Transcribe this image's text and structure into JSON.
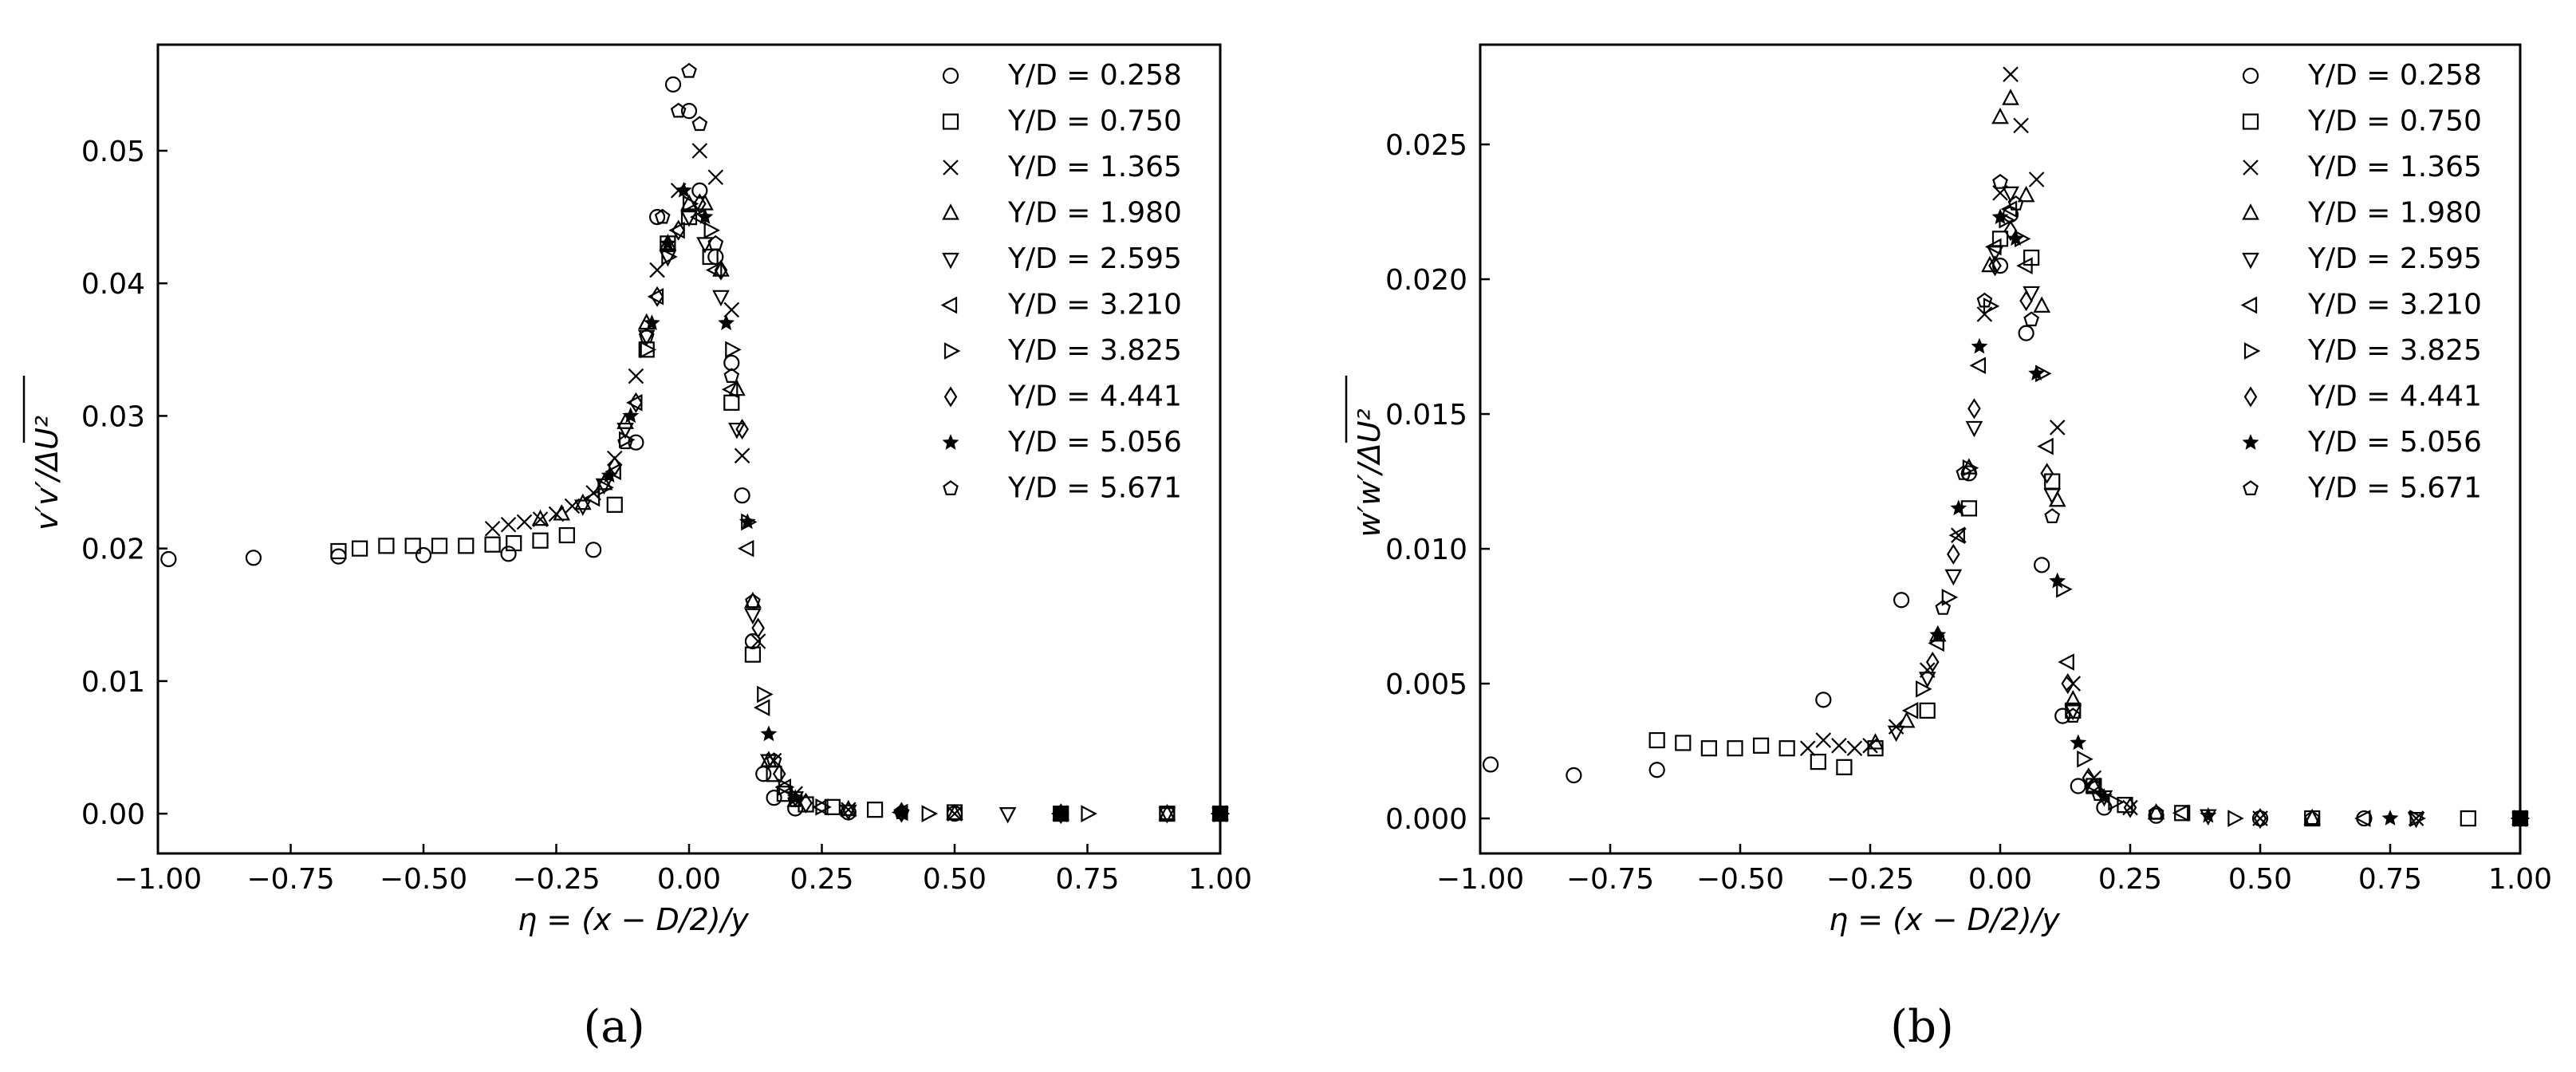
{
  "chart_data": [
    {
      "type": "scatter",
      "panel_label": "(a)",
      "xlabel": "η = (x − D/2)/y",
      "ylabel": "v′v′/ΔU²",
      "xlim": [
        -1.0,
        1.0
      ],
      "ylim": [
        -0.003,
        0.058
      ],
      "xticks": [
        "−1.00",
        "−0.75",
        "−0.50",
        "−0.25",
        "0.00",
        "0.25",
        "0.50",
        "0.75",
        "1.00"
      ],
      "yticks": [
        "0.00",
        "0.01",
        "0.02",
        "0.03",
        "0.04",
        "0.05"
      ],
      "legend_position": "top-right",
      "series": [
        {
          "name": "Y/D = 0.258",
          "marker": "circle",
          "x": [
            -0.98,
            -0.82,
            -0.66,
            -0.5,
            -0.34,
            -0.18,
            -0.1,
            -0.06,
            -0.03,
            0.0,
            0.02,
            0.05,
            0.08,
            0.1,
            0.12,
            0.14,
            0.16,
            0.2,
            0.3,
            0.5,
            0.7,
            0.9,
            1.0
          ],
          "y": [
            0.0192,
            0.0193,
            0.0194,
            0.0195,
            0.0196,
            0.0199,
            0.028,
            0.045,
            0.055,
            0.053,
            0.047,
            0.042,
            0.034,
            0.024,
            0.013,
            0.003,
            0.0012,
            0.0004,
            0.0001,
            0.0,
            0.0,
            0.0,
            0.0
          ]
        },
        {
          "name": "Y/D = 0.750",
          "marker": "square",
          "x": [
            -0.66,
            -0.62,
            -0.57,
            -0.52,
            -0.47,
            -0.42,
            -0.37,
            -0.33,
            -0.28,
            -0.23,
            -0.14,
            -0.08,
            -0.04,
            0.0,
            0.04,
            0.08,
            0.12,
            0.16,
            0.18,
            0.22,
            0.27,
            0.35,
            0.5,
            0.7,
            0.9,
            1.0
          ],
          "y": [
            0.0198,
            0.02,
            0.0202,
            0.0202,
            0.0202,
            0.0202,
            0.0203,
            0.0204,
            0.0206,
            0.021,
            0.0233,
            0.035,
            0.043,
            0.045,
            0.042,
            0.031,
            0.012,
            0.003,
            0.0015,
            0.0007,
            0.0005,
            0.0003,
            0.0001,
            0.0,
            0.0,
            0.0
          ]
        },
        {
          "name": "Y/D = 1.365",
          "marker": "x",
          "x": [
            -0.37,
            -0.34,
            -0.31,
            -0.28,
            -0.25,
            -0.22,
            -0.18,
            -0.14,
            -0.1,
            -0.06,
            -0.02,
            0.02,
            0.05,
            0.08,
            0.1,
            0.13,
            0.16,
            0.2,
            0.3,
            0.5,
            0.7,
            1.0
          ],
          "y": [
            0.0215,
            0.0218,
            0.022,
            0.0222,
            0.0226,
            0.0232,
            0.0242,
            0.0268,
            0.033,
            0.041,
            0.047,
            0.05,
            0.048,
            0.038,
            0.027,
            0.013,
            0.004,
            0.0015,
            0.0003,
            0.0,
            0.0,
            0.0
          ]
        },
        {
          "name": "Y/D = 1.980",
          "marker": "triangle-up",
          "x": [
            -0.28,
            -0.24,
            -0.2,
            -0.16,
            -0.12,
            -0.08,
            -0.04,
            0.0,
            0.03,
            0.06,
            0.09,
            0.12,
            0.15,
            0.2,
            0.3,
            0.5,
            0.7,
            0.9,
            1.0
          ],
          "y": [
            0.0222,
            0.0226,
            0.0234,
            0.0249,
            0.0295,
            0.037,
            0.043,
            0.046,
            0.046,
            0.041,
            0.032,
            0.016,
            0.004,
            0.001,
            0.0003,
            0.0,
            0.0,
            0.0,
            0.0
          ]
        },
        {
          "name": "Y/D = 2.595",
          "marker": "triangle-down",
          "x": [
            -0.2,
            -0.16,
            -0.12,
            -0.08,
            -0.04,
            0.0,
            0.03,
            0.06,
            0.09,
            0.12,
            0.15,
            0.2,
            0.3,
            0.6,
            0.9,
            1.0
          ],
          "y": [
            0.0232,
            0.0248,
            0.029,
            0.036,
            0.042,
            0.045,
            0.043,
            0.039,
            0.029,
            0.015,
            0.004,
            0.0012,
            0.0002,
            0.0,
            0.0,
            0.0
          ]
        },
        {
          "name": "Y/D = 3.210",
          "marker": "triangle-left",
          "x": [
            -0.18,
            -0.14,
            -0.1,
            -0.06,
            -0.02,
            0.02,
            0.05,
            0.08,
            0.11,
            0.14,
            0.18,
            0.25,
            0.4,
            0.7,
            1.0
          ],
          "y": [
            0.0238,
            0.0258,
            0.031,
            0.039,
            0.044,
            0.045,
            0.041,
            0.032,
            0.02,
            0.008,
            0.002,
            0.0005,
            0.0001,
            0.0,
            0.0
          ]
        },
        {
          "name": "Y/D = 3.825",
          "marker": "triangle-right",
          "x": [
            -0.16,
            -0.12,
            -0.08,
            -0.04,
            0.0,
            0.04,
            0.08,
            0.11,
            0.14,
            0.18,
            0.25,
            0.45,
            0.75,
            1.0
          ],
          "y": [
            0.0246,
            0.0282,
            0.035,
            0.042,
            0.046,
            0.044,
            0.035,
            0.022,
            0.009,
            0.002,
            0.0005,
            0.0,
            0.0,
            0.0
          ]
        },
        {
          "name": "Y/D = 4.441",
          "marker": "diamond",
          "x": [
            -0.14,
            -0.1,
            -0.06,
            -0.02,
            0.02,
            0.06,
            0.1,
            0.13,
            0.17,
            0.22,
            0.4,
            0.7,
            1.0
          ],
          "y": [
            0.0262,
            0.031,
            0.039,
            0.044,
            0.046,
            0.041,
            0.029,
            0.014,
            0.003,
            0.0008,
            0.0001,
            0.0,
            0.0
          ]
        },
        {
          "name": "Y/D = 5.056",
          "marker": "star",
          "x": [
            -0.15,
            -0.11,
            -0.07,
            -0.04,
            -0.01,
            0.03,
            0.07,
            0.11,
            0.15,
            0.2,
            0.4,
            0.7,
            1.0
          ],
          "y": [
            0.0255,
            0.03,
            0.037,
            0.043,
            0.047,
            0.045,
            0.037,
            0.022,
            0.006,
            0.0012,
            0.0001,
            0.0,
            0.0
          ]
        },
        {
          "name": "Y/D = 5.671",
          "marker": "pentagon",
          "x": [
            -0.12,
            -0.08,
            -0.05,
            -0.02,
            0.0,
            0.02,
            0.05,
            0.08,
            0.12,
            0.16,
            0.2,
            0.4,
            0.7,
            1.0
          ],
          "y": [
            0.028,
            0.036,
            0.045,
            0.053,
            0.056,
            0.052,
            0.043,
            0.033,
            0.016,
            0.004,
            0.001,
            0.0001,
            0.0,
            0.0
          ]
        }
      ]
    },
    {
      "type": "scatter",
      "panel_label": "(b)",
      "xlabel": "η = (x − D/2)/y",
      "ylabel": "w′w′/ΔU²",
      "xlim": [
        -1.0,
        1.0
      ],
      "ylim": [
        -0.0013,
        0.0287
      ],
      "xticks": [
        "−1.00",
        "−0.75",
        "−0.50",
        "−0.25",
        "0.00",
        "0.25",
        "0.50",
        "0.75",
        "1.00"
      ],
      "yticks": [
        "0.000",
        "0.005",
        "0.010",
        "0.015",
        "0.020",
        "0.025"
      ],
      "legend_position": "top-right",
      "series": [
        {
          "name": "Y/D = 0.258",
          "marker": "circle",
          "x": [
            -0.98,
            -0.82,
            -0.66,
            -0.34,
            -0.19,
            -0.06,
            0.0,
            0.02,
            0.05,
            0.08,
            0.12,
            0.15,
            0.2,
            0.3,
            0.5,
            0.7,
            1.0
          ],
          "y": [
            0.002,
            0.0016,
            0.0018,
            0.0044,
            0.0081,
            0.0128,
            0.0205,
            0.0224,
            0.018,
            0.0094,
            0.0038,
            0.0012,
            0.0004,
            0.0001,
            0.0,
            0.0,
            0.0
          ]
        },
        {
          "name": "Y/D = 0.750",
          "marker": "square",
          "x": [
            -0.66,
            -0.61,
            -0.56,
            -0.51,
            -0.46,
            -0.41,
            -0.35,
            -0.3,
            -0.24,
            -0.14,
            -0.06,
            0.0,
            0.06,
            0.1,
            0.14,
            0.18,
            0.24,
            0.35,
            0.6,
            0.9,
            1.0
          ],
          "y": [
            0.0029,
            0.0028,
            0.0026,
            0.0026,
            0.0027,
            0.0026,
            0.0021,
            0.0019,
            0.0026,
            0.004,
            0.0115,
            0.0215,
            0.0208,
            0.0125,
            0.004,
            0.0012,
            0.0005,
            0.0002,
            0.0,
            0.0,
            0.0
          ]
        },
        {
          "name": "Y/D = 1.365",
          "marker": "x",
          "x": [
            -0.37,
            -0.34,
            -0.31,
            -0.28,
            -0.25,
            -0.2,
            -0.14,
            -0.08,
            -0.03,
            0.0,
            0.02,
            0.04,
            0.07,
            0.11,
            0.14,
            0.18,
            0.25,
            0.5,
            0.8,
            1.0
          ],
          "y": [
            0.0026,
            0.0029,
            0.0027,
            0.0026,
            0.0027,
            0.0034,
            0.0055,
            0.0105,
            0.0187,
            0.0232,
            0.0276,
            0.0257,
            0.0237,
            0.0145,
            0.005,
            0.0015,
            0.0004,
            0.0,
            0.0,
            0.0
          ]
        },
        {
          "name": "Y/D = 1.980",
          "marker": "triangle-up",
          "x": [
            -0.24,
            -0.18,
            -0.12,
            -0.06,
            -0.02,
            0.0,
            0.02,
            0.05,
            0.08,
            0.11,
            0.14,
            0.18,
            0.3,
            0.6,
            1.0
          ],
          "y": [
            0.0028,
            0.0036,
            0.0068,
            0.013,
            0.0205,
            0.026,
            0.0267,
            0.0231,
            0.019,
            0.0118,
            0.0044,
            0.0012,
            0.0002,
            0.0,
            0.0
          ]
        },
        {
          "name": "Y/D = 2.595",
          "marker": "triangle-down",
          "x": [
            -0.2,
            -0.14,
            -0.09,
            -0.05,
            -0.01,
            0.02,
            0.06,
            0.1,
            0.14,
            0.2,
            0.4,
            0.8,
            1.0
          ],
          "y": [
            0.0032,
            0.0052,
            0.009,
            0.0145,
            0.021,
            0.0232,
            0.0195,
            0.012,
            0.004,
            0.0008,
            0.0001,
            0.0,
            0.0
          ]
        },
        {
          "name": "Y/D = 3.210",
          "marker": "triangle-left",
          "x": [
            -0.17,
            -0.12,
            -0.08,
            -0.04,
            -0.01,
            0.02,
            0.05,
            0.09,
            0.13,
            0.18,
            0.35,
            0.7,
            1.0
          ],
          "y": [
            0.004,
            0.0065,
            0.0105,
            0.0168,
            0.0212,
            0.0226,
            0.0205,
            0.0138,
            0.0058,
            0.0012,
            0.0002,
            0.0,
            0.0
          ]
        },
        {
          "name": "Y/D = 3.825",
          "marker": "triangle-right",
          "x": [
            -0.15,
            -0.1,
            -0.06,
            -0.02,
            0.01,
            0.04,
            0.08,
            0.12,
            0.16,
            0.22,
            0.45,
            0.8,
            1.0
          ],
          "y": [
            0.0048,
            0.0082,
            0.013,
            0.019,
            0.0222,
            0.0215,
            0.0165,
            0.0085,
            0.0022,
            0.0006,
            0.0,
            0.0,
            0.0
          ]
        },
        {
          "name": "Y/D = 4.441",
          "marker": "diamond",
          "x": [
            -0.13,
            -0.09,
            -0.05,
            -0.01,
            0.02,
            0.05,
            0.09,
            0.13,
            0.17,
            0.25,
            0.5,
            1.0
          ],
          "y": [
            0.0058,
            0.0098,
            0.0152,
            0.0205,
            0.0218,
            0.0192,
            0.0128,
            0.005,
            0.0015,
            0.0004,
            0.0,
            0.0
          ]
        },
        {
          "name": "Y/D = 5.056",
          "marker": "star",
          "x": [
            -0.12,
            -0.08,
            -0.04,
            0.0,
            0.03,
            0.07,
            0.11,
            0.15,
            0.2,
            0.4,
            0.75,
            1.0
          ],
          "y": [
            0.0068,
            0.0115,
            0.0175,
            0.0223,
            0.0215,
            0.0165,
            0.0088,
            0.0028,
            0.0008,
            0.0001,
            0.0,
            0.0
          ]
        },
        {
          "name": "Y/D = 5.671",
          "marker": "pentagon",
          "x": [
            -0.11,
            -0.07,
            -0.03,
            0.0,
            0.03,
            0.06,
            0.1,
            0.14,
            0.19,
            0.3,
            0.6,
            1.0
          ],
          "y": [
            0.0078,
            0.0128,
            0.0192,
            0.0236,
            0.0228,
            0.0185,
            0.0112,
            0.0038,
            0.0009,
            0.0002,
            0.0,
            0.0
          ]
        }
      ]
    }
  ]
}
